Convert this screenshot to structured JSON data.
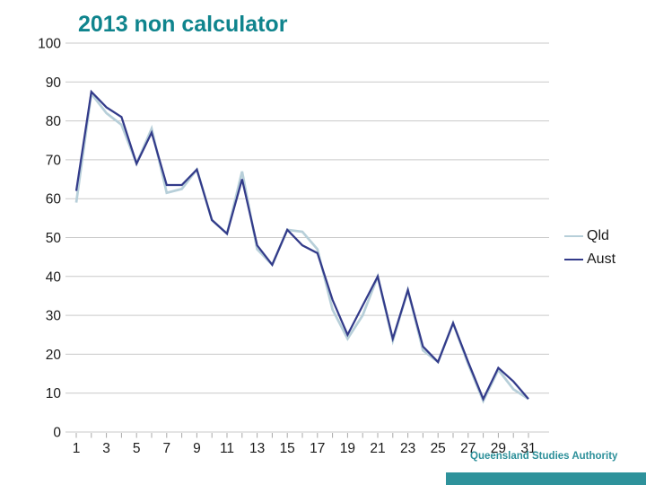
{
  "title": "2013 non calculator",
  "footer": {
    "text": "Queensland Studies Authority"
  },
  "legend": {
    "items": [
      {
        "label": "Qld"
      },
      {
        "label": "Aust"
      }
    ]
  },
  "colors": {
    "title": "#0f848d",
    "qld_line": "#b7cfd9",
    "aust_line": "#333b8a",
    "gridline": "#c9c9c9",
    "tick": "#a8a8a8",
    "axis_text": "#1b1b1b",
    "footer_text": "#2d909a",
    "footer_bar": "#2e929b"
  },
  "chart_data": {
    "type": "line",
    "title": "2013 non calculator",
    "x": [
      1,
      2,
      3,
      4,
      5,
      6,
      7,
      8,
      9,
      10,
      11,
      12,
      13,
      14,
      15,
      16,
      17,
      18,
      19,
      20,
      21,
      22,
      23,
      24,
      25,
      26,
      27,
      28,
      29,
      30,
      31
    ],
    "x_tick_labels": [
      1,
      3,
      5,
      7,
      9,
      11,
      13,
      15,
      17,
      19,
      21,
      23,
      25,
      27,
      29,
      31
    ],
    "series": [
      {
        "name": "Qld",
        "color": "#b7cfd9",
        "values": [
          59,
          87,
          82,
          79,
          69,
          78,
          61.5,
          62.5,
          67.5,
          54.5,
          51,
          67,
          47,
          43,
          52,
          51.5,
          47,
          31.5,
          24,
          30,
          40,
          23.5,
          36.5,
          21,
          18,
          28,
          17.5,
          8,
          16,
          11,
          8.5
        ]
      },
      {
        "name": "Aust",
        "color": "#333b8a",
        "values": [
          62,
          87.5,
          83.5,
          81,
          69,
          77,
          63.5,
          63.5,
          67.5,
          54.5,
          51,
          65,
          48,
          43,
          52,
          48,
          46,
          34,
          25,
          32.5,
          40,
          24,
          36.5,
          22,
          18,
          28,
          18,
          8.5,
          16.5,
          13,
          8.5
        ]
      }
    ],
    "xlabel": "",
    "ylabel": "",
    "ylim": [
      0,
      100
    ],
    "ytick_step": 10,
    "y_ticks": [
      0,
      10,
      20,
      30,
      40,
      50,
      60,
      70,
      80,
      90,
      100
    ],
    "grid": "horizontal",
    "legend_position": "right-middle"
  }
}
